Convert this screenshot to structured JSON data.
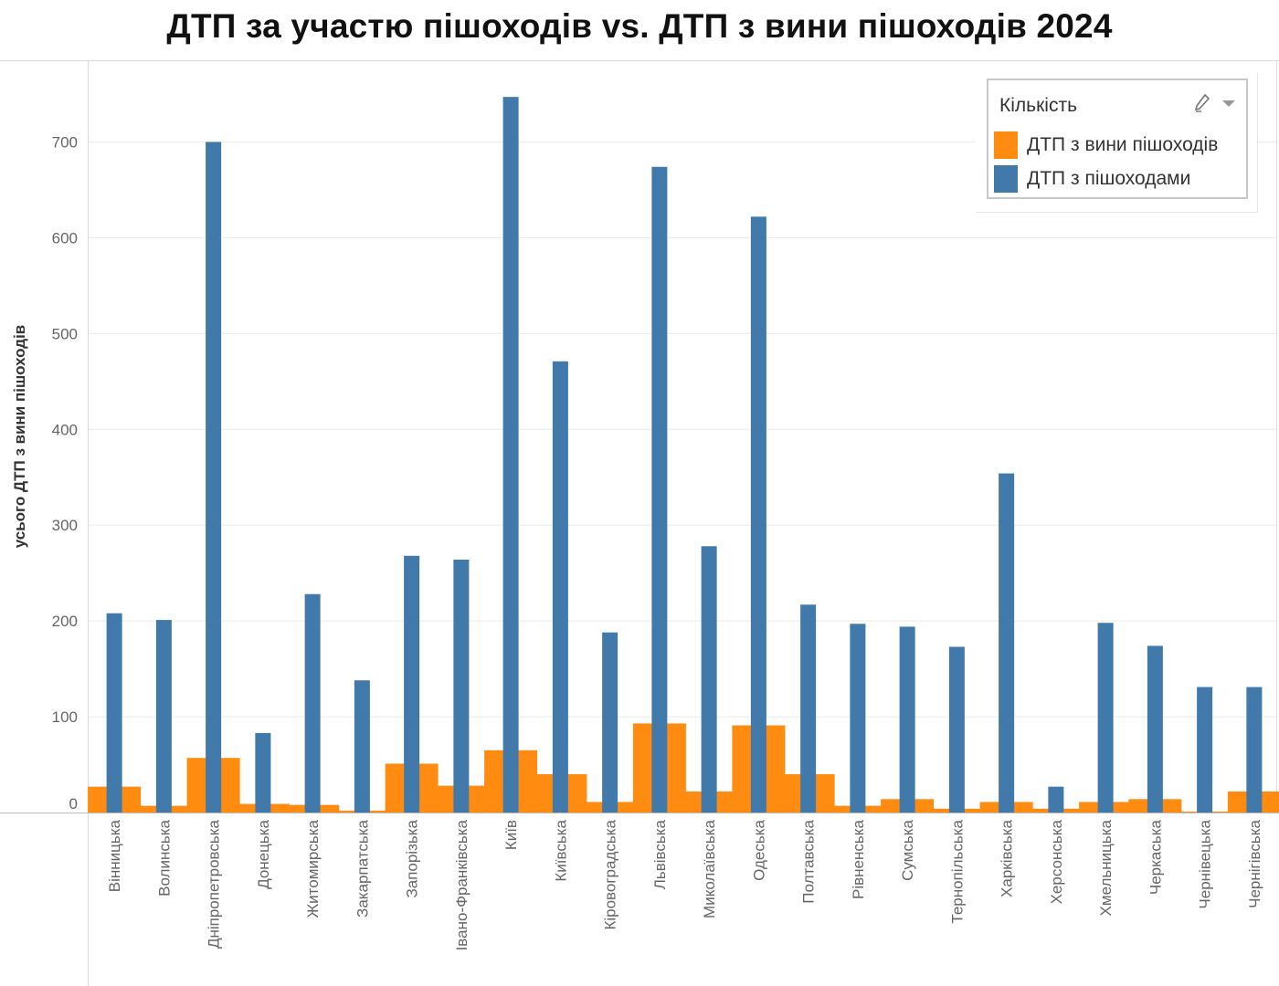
{
  "title": "ДТП за участю пішоходів vs. ДТП з вини пішоходів 2024",
  "legend": {
    "title": "Кількість",
    "icons": [
      "pencil-icon",
      "chevron-down-icon"
    ],
    "items": [
      {
        "label": "ДТП з вини пішоходів",
        "color": "#ff8c10"
      },
      {
        "label": "ДТП з пішоходами",
        "color": "#4179ab"
      }
    ]
  },
  "chart_data": {
    "type": "bar",
    "ylabel": "усього ДТП з вини пішоходів",
    "xlabel": "",
    "ylim": [
      0,
      780
    ],
    "yticks": [
      0,
      100,
      200,
      300,
      400,
      500,
      600,
      700
    ],
    "grid": true,
    "legend_position": "top-right",
    "categories": [
      "Вінницька",
      "Волинська",
      "Дніпропетровська",
      "Донецька",
      "Житомирська",
      "Закарпатська",
      "Запорізька",
      "Івано-Франківська",
      "Київ",
      "Київська",
      "Кіровоградська",
      "Львівська",
      "Миколаївська",
      "Одеська",
      "Полтавська",
      "Рівненська",
      "Сумська",
      "Тернопільська",
      "Харківська",
      "Херсонська",
      "Хмельницька",
      "Черкаська",
      "Чернівецька",
      "Чернігівська"
    ],
    "series": [
      {
        "name": "ДТП з вини пішоходів",
        "color": "#ff8c10",
        "values": [
          27,
          7,
          57,
          9,
          8,
          2,
          51,
          28,
          65,
          40,
          11,
          93,
          22,
          91,
          40,
          7,
          14,
          4,
          11,
          4,
          11,
          14,
          1,
          22
        ]
      },
      {
        "name": "ДТП з пішоходами",
        "color": "#4179ab",
        "values": [
          208,
          201,
          700,
          83,
          228,
          138,
          268,
          264,
          747,
          471,
          188,
          674,
          278,
          622,
          217,
          197,
          194,
          173,
          354,
          27,
          198,
          174,
          131,
          131
        ]
      }
    ]
  }
}
